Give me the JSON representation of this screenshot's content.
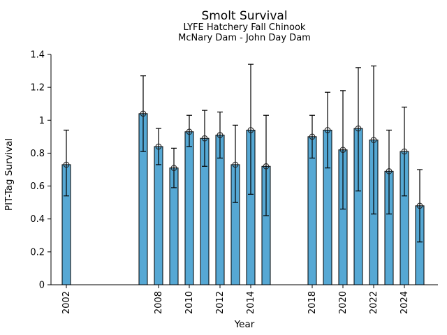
{
  "chart_data": {
    "type": "bar",
    "title": "Smolt Survival",
    "subtitle1": "LYFE Hatchery Fall Chinook",
    "subtitle2": "McNary Dam - John Day Dam",
    "xlabel": "Year",
    "ylabel": "PIT-Tag Survival",
    "ylim": [
      0,
      1.4
    ],
    "xlim": [
      2001,
      2026.3
    ],
    "yticks": [
      "0",
      "0.2",
      "0.4",
      "0.6",
      "0.8",
      "1",
      "1.2",
      "1.4"
    ],
    "ytick_values": [
      0,
      0.2,
      0.4,
      0.6,
      0.8,
      1.0,
      1.2,
      1.4
    ],
    "xticks": [
      "2002",
      "2008",
      "2010",
      "2012",
      "2014",
      "2018",
      "2020",
      "2022",
      "2024"
    ],
    "xtick_values": [
      2002,
      2008,
      2010,
      2012,
      2014,
      2018,
      2020,
      2022,
      2024
    ],
    "grid": false,
    "legend": null,
    "marker": "open-circle",
    "bar_color": "#56A8D4",
    "bar_edge_color": "#000000",
    "errorbar_color": "#000000",
    "bar_width_years": 0.55,
    "series": [
      {
        "name": "PIT-Tag Survival",
        "points": [
          {
            "year": 2002,
            "value": 0.73,
            "err_low": 0.54,
            "err_high": 0.94
          },
          {
            "year": 2007,
            "value": 1.04,
            "err_low": 0.81,
            "err_high": 1.27
          },
          {
            "year": 2008,
            "value": 0.84,
            "err_low": 0.73,
            "err_high": 0.95
          },
          {
            "year": 2009,
            "value": 0.71,
            "err_low": 0.59,
            "err_high": 0.83
          },
          {
            "year": 2010,
            "value": 0.93,
            "err_low": 0.84,
            "err_high": 1.03
          },
          {
            "year": 2011,
            "value": 0.89,
            "err_low": 0.72,
            "err_high": 1.06
          },
          {
            "year": 2012,
            "value": 0.91,
            "err_low": 0.77,
            "err_high": 1.05
          },
          {
            "year": 2013,
            "value": 0.73,
            "err_low": 0.5,
            "err_high": 0.97
          },
          {
            "year": 2014,
            "value": 0.94,
            "err_low": 0.55,
            "err_high": 1.34
          },
          {
            "year": 2015,
            "value": 0.72,
            "err_low": 0.42,
            "err_high": 1.03
          },
          {
            "year": 2018,
            "value": 0.9,
            "err_low": 0.77,
            "err_high": 1.03
          },
          {
            "year": 2019,
            "value": 0.94,
            "err_low": 0.71,
            "err_high": 1.17
          },
          {
            "year": 2020,
            "value": 0.82,
            "err_low": 0.46,
            "err_high": 1.18
          },
          {
            "year": 2021,
            "value": 0.95,
            "err_low": 0.57,
            "err_high": 1.32
          },
          {
            "year": 2022,
            "value": 0.88,
            "err_low": 0.43,
            "err_high": 1.33
          },
          {
            "year": 2023,
            "value": 0.69,
            "err_low": 0.43,
            "err_high": 0.94
          },
          {
            "year": 2024,
            "value": 0.81,
            "err_low": 0.54,
            "err_high": 1.08
          },
          {
            "year": 2025,
            "value": 0.48,
            "err_low": 0.26,
            "err_high": 0.7
          }
        ]
      }
    ]
  }
}
